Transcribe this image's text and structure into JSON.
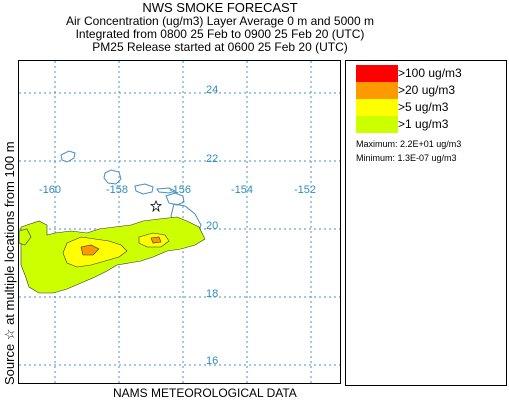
{
  "header": {
    "title": "NWS SMOKE FORECAST",
    "line1": "Air Concentration (ug/m3) Layer Average    0 m and  5000 m",
    "line2": "Integrated from 0800 25 Feb to 0900 25 Feb 20 (UTC)",
    "line3": "PM25 Release started at 0600 25 Feb 20 (UTC)"
  },
  "side_label": "Source ☆   at multiple locations     from   100 m",
  "footer": "NAMS METEOROLOGICAL DATA",
  "map": {
    "longitude_labels": [
      "-160",
      "-158",
      "-156",
      "-154",
      "-152"
    ],
    "latitude_labels": [
      "24",
      "22",
      "20",
      "18",
      "16"
    ],
    "longitude_range": [
      -161.0,
      -151.0
    ],
    "latitude_range": [
      15.0,
      25.0
    ],
    "grid": true,
    "coast_color": "#4a8fc0",
    "grid_color": "#4a90c0"
  },
  "legend": {
    "items": [
      {
        "label": ">100 ug/m3",
        "color": "#ff0000"
      },
      {
        "label": ">20 ug/m3",
        "color": "#ff9900"
      },
      {
        "label": ">5 ug/m3",
        "color": "#ffff00"
      },
      {
        "label": ">1 ug/m3",
        "color": "#ccff00"
      }
    ],
    "maximum": "Maximum: 2.2E+01 ug/m3",
    "minimum": "Minimum: 1.3E-07 ug/m3"
  }
}
